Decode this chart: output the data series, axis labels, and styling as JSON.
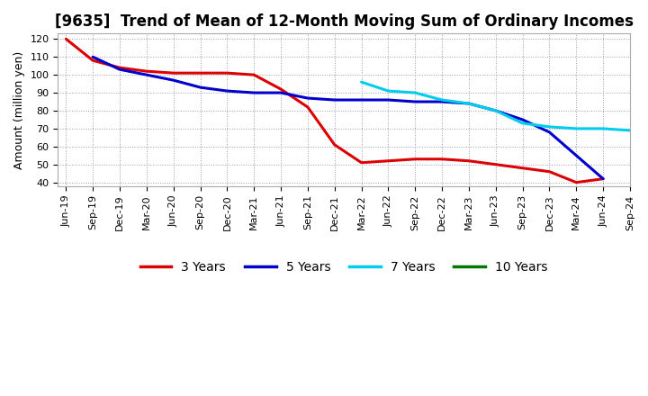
{
  "title": "[9635]  Trend of Mean of 12-Month Moving Sum of Ordinary Incomes",
  "ylabel": "Amount (million yen)",
  "background_color": "#ffffff",
  "plot_bg_color": "#ffffff",
  "grid_color": "#9999bb",
  "ylim": [
    38,
    123
  ],
  "yticks": [
    40,
    50,
    60,
    70,
    80,
    90,
    100,
    110,
    120
  ],
  "x_labels": [
    "Jun-19",
    "Sep-19",
    "Dec-19",
    "Mar-20",
    "Jun-20",
    "Sep-20",
    "Dec-20",
    "Mar-21",
    "Jun-21",
    "Sep-21",
    "Dec-21",
    "Mar-22",
    "Jun-22",
    "Sep-22",
    "Dec-22",
    "Mar-23",
    "Jun-23",
    "Sep-23",
    "Dec-23",
    "Mar-24",
    "Jun-24",
    "Sep-24"
  ],
  "series": {
    "3 Years": {
      "color": "#dd0000",
      "data_x": [
        0,
        1,
        2,
        3,
        4,
        5,
        6,
        7,
        8,
        9,
        10,
        11,
        12,
        13,
        14,
        15,
        16,
        17,
        18,
        19,
        20
      ],
      "data_y": [
        120,
        108,
        104,
        102,
        101,
        101,
        101,
        100,
        92,
        82,
        61,
        51,
        52,
        53,
        53,
        52,
        50,
        48,
        46,
        40,
        42
      ]
    },
    "5 Years": {
      "color": "#0000cc",
      "data_x": [
        1,
        2,
        3,
        4,
        5,
        6,
        7,
        8,
        9,
        10,
        11,
        12,
        13,
        14,
        15,
        16,
        17,
        18,
        19,
        20
      ],
      "data_y": [
        110,
        103,
        100,
        97,
        93,
        91,
        90,
        90,
        87,
        86,
        86,
        86,
        85,
        85,
        84,
        80,
        75,
        68,
        55,
        42
      ]
    },
    "7 Years": {
      "color": "#00ccee",
      "data_x": [
        11,
        12,
        13,
        14,
        15,
        16,
        17,
        18,
        19,
        20,
        21
      ],
      "data_y": [
        96,
        91,
        90,
        86,
        84,
        80,
        73,
        71,
        70,
        70,
        69
      ]
    },
    "10 Years": {
      "color": "#007700",
      "data_x": [],
      "data_y": []
    }
  },
  "legend": {
    "entries": [
      "3 Years",
      "5 Years",
      "7 Years",
      "10 Years"
    ],
    "colors": [
      "#dd0000",
      "#0000cc",
      "#00ccee",
      "#007700"
    ]
  },
  "linewidth": 2.2,
  "title_fontsize": 12,
  "axis_label_fontsize": 9,
  "tick_fontsize": 8,
  "legend_fontsize": 10
}
